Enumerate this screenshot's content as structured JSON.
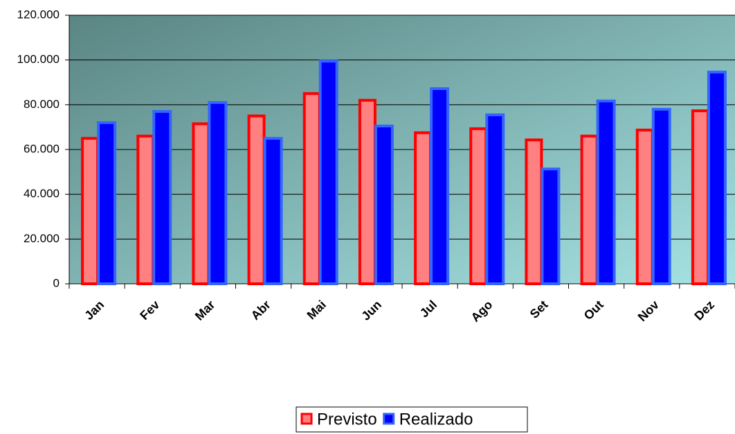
{
  "chart_data": {
    "type": "bar",
    "categories": [
      "Jan",
      "Fev",
      "Mar",
      "Abr",
      "Mai",
      "Jun",
      "Jul",
      "Ago",
      "Set",
      "Out",
      "Nov",
      "Dez"
    ],
    "series": [
      {
        "name": "Previsto",
        "color": "#ff8080",
        "edgecolor": "#ff0000",
        "values": [
          65000,
          66000,
          71500,
          75000,
          85000,
          82000,
          67500,
          69300,
          64300,
          66000,
          68700,
          77300
        ]
      },
      {
        "name": "Realizado",
        "color": "#0000ff",
        "edgecolor": "#3366ff",
        "values": [
          72000,
          77000,
          81000,
          65000,
          99500,
          70500,
          87200,
          75500,
          51300,
          81700,
          78000,
          94600
        ]
      }
    ],
    "ylim": [
      0,
      120000
    ],
    "yticks": [
      0,
      {
        "value": 20000,
        "label": "20.000"
      },
      {
        "value": 40000,
        "label": "40.000"
      },
      {
        "value": 60000,
        "label": "60.000"
      },
      {
        "value": 80000,
        "label": "80.000"
      },
      {
        "value": 100000,
        "label": "100.000"
      },
      {
        "value": 120000,
        "label": "120.000"
      }
    ],
    "grid": true,
    "legend": "bottom"
  }
}
